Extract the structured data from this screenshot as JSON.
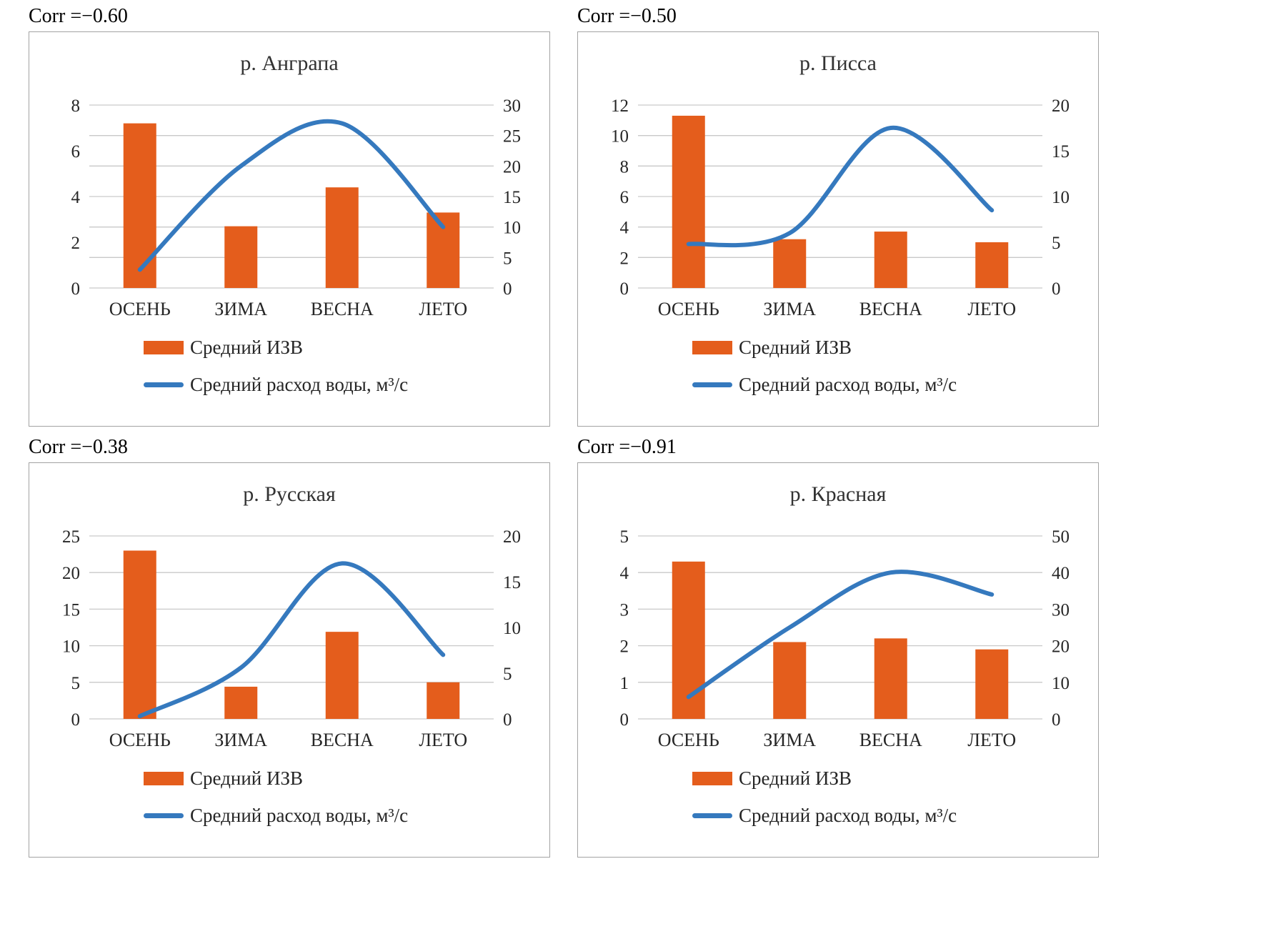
{
  "colors": {
    "bar": "#E45D1C",
    "line": "#3579BE",
    "grid": "#C9C9C9",
    "text": "#262626",
    "box_border": "#A3A3A3"
  },
  "chart_data": [
    {
      "type": "combo",
      "title": "р. Анграпа",
      "corr_label": "Corr =−0.60",
      "categories": [
        "ОСЕНЬ",
        "ЗИМА",
        "ВЕСНА",
        "ЛЕТО"
      ],
      "series": [
        {
          "name": "Средний ИЗВ",
          "type": "bar",
          "axis": "left",
          "values": [
            7.2,
            2.7,
            4.4,
            3.3
          ]
        },
        {
          "name": "Средний расход воды, м³/с",
          "type": "line",
          "axis": "right",
          "values": [
            3,
            20,
            27,
            10
          ]
        }
      ],
      "left_axis": {
        "min": 0,
        "max": 8,
        "ticks": [
          0,
          2,
          4,
          6,
          8
        ]
      },
      "right_axis": {
        "min": 0,
        "max": 30,
        "ticks": [
          0,
          5,
          10,
          15,
          20,
          25,
          30
        ]
      },
      "grid": "horizontal",
      "legend_position": "bottom-left"
    },
    {
      "type": "combo",
      "title": "р. Писса",
      "corr_label": "Corr =−0.50",
      "categories": [
        "ОСЕНЬ",
        "ЗИМА",
        "ВЕСНА",
        "ЛЕТО"
      ],
      "series": [
        {
          "name": "Средний ИЗВ",
          "type": "bar",
          "axis": "left",
          "values": [
            11.3,
            3.2,
            3.7,
            3.0
          ]
        },
        {
          "name": "Средний расход воды, м³/с",
          "type": "line",
          "axis": "right",
          "values": [
            4.8,
            6,
            17.5,
            8.5
          ]
        }
      ],
      "left_axis": {
        "min": 0,
        "max": 12,
        "ticks": [
          0,
          2,
          4,
          6,
          8,
          10,
          12
        ]
      },
      "right_axis": {
        "min": 0,
        "max": 20,
        "ticks": [
          0,
          5,
          10,
          15,
          20
        ]
      },
      "grid": "horizontal",
      "legend_position": "bottom-left"
    },
    {
      "type": "combo",
      "title": "р. Русская",
      "corr_label": "Corr =−0.38",
      "categories": [
        "ОСЕНЬ",
        "ЗИМА",
        "ВЕСНА",
        "ЛЕТО"
      ],
      "series": [
        {
          "name": "Средний ИЗВ",
          "type": "bar",
          "axis": "left",
          "values": [
            23,
            4.4,
            11.9,
            5
          ]
        },
        {
          "name": "Средний расход воды, м³/с",
          "type": "line",
          "axis": "right",
          "values": [
            0.3,
            5.6,
            17,
            7
          ]
        }
      ],
      "left_axis": {
        "min": 0,
        "max": 25,
        "ticks": [
          0,
          5,
          10,
          15,
          20,
          25
        ]
      },
      "right_axis": {
        "min": 0,
        "max": 20,
        "ticks": [
          0,
          5,
          10,
          15,
          20
        ]
      },
      "grid": "horizontal",
      "legend_position": "bottom-left"
    },
    {
      "type": "combo",
      "title": "р. Красная",
      "corr_label": "Corr =−0.91",
      "categories": [
        "ОСЕНЬ",
        "ЗИМА",
        "ВЕСНА",
        "ЛЕТО"
      ],
      "series": [
        {
          "name": "Средний ИЗВ",
          "type": "bar",
          "axis": "left",
          "values": [
            4.3,
            2.1,
            2.2,
            1.9
          ]
        },
        {
          "name": "Средний расход воды, м³/с",
          "type": "line",
          "axis": "right",
          "values": [
            6,
            25,
            40,
            34
          ]
        }
      ],
      "left_axis": {
        "min": 0,
        "max": 5,
        "ticks": [
          0,
          1,
          2,
          3,
          4,
          5
        ]
      },
      "right_axis": {
        "min": 0,
        "max": 50,
        "ticks": [
          0,
          10,
          20,
          30,
          40,
          50
        ]
      },
      "grid": "horizontal",
      "legend_position": "bottom-left"
    }
  ]
}
